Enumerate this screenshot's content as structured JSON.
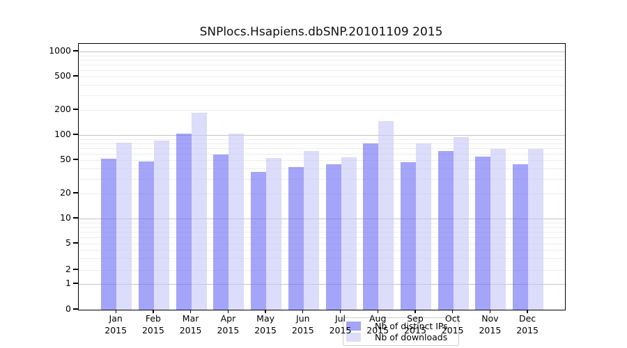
{
  "chart_data": {
    "type": "bar",
    "title": "SNPlocs.Hsapiens.dbSNP.20101109 2015",
    "x_categories": [
      {
        "month": "Jan",
        "year": "2015"
      },
      {
        "month": "Feb",
        "year": "2015"
      },
      {
        "month": "Mar",
        "year": "2015"
      },
      {
        "month": "Apr",
        "year": "2015"
      },
      {
        "month": "May",
        "year": "2015"
      },
      {
        "month": "Jun",
        "year": "2015"
      },
      {
        "month": "Jul",
        "year": "2015"
      },
      {
        "month": "Aug",
        "year": "2015"
      },
      {
        "month": "Sep",
        "year": "2015"
      },
      {
        "month": "Oct",
        "year": "2015"
      },
      {
        "month": "Nov",
        "year": "2015"
      },
      {
        "month": "Dec",
        "year": "2015"
      }
    ],
    "series": [
      {
        "name": "Nb of distinct IPs",
        "values": [
          52,
          48,
          104,
          58,
          36,
          41,
          45,
          79,
          47,
          64,
          55,
          45
        ]
      },
      {
        "name": "Nb of downloads",
        "values": [
          81,
          85,
          184,
          104,
          53,
          64,
          54,
          146,
          79,
          94,
          68,
          68
        ]
      }
    ],
    "y_axis": {
      "scale": "log-like",
      "tick_labels": [
        0,
        1,
        2,
        5,
        10,
        20,
        50,
        100,
        200,
        500,
        1000
      ],
      "ylim": [
        0,
        1000
      ],
      "grid": true
    },
    "legend": {
      "position": "bottom-center"
    }
  },
  "colors": {
    "bar_distinct_ips": "rgba(108,108,245,0.62)",
    "bar_downloads": "rgba(198,198,248,0.62)",
    "grid_major": "#c3c3c3",
    "grid_minor": "#ededed",
    "axis": "#000000",
    "title_text": "#111111"
  }
}
